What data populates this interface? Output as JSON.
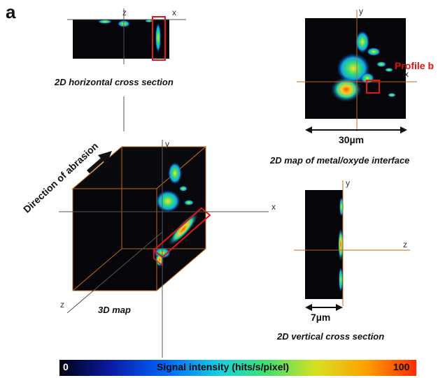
{
  "panel_label": "a",
  "captions": {
    "horizontal": "2D horizontal cross section",
    "map_interface": "2D map of metal/oxyde interface",
    "map3d": "3D map",
    "vertical": "2D vertical cross section"
  },
  "scale_bars": {
    "top_right": "30µm",
    "vertical": "7µm"
  },
  "profile_label": "Profile b",
  "direction_label": "Direction of abrasion",
  "axes": {
    "x": "x",
    "y": "y",
    "z": "z"
  },
  "colorbar": {
    "min": "0",
    "title": "Signal intensity (hits/s/pixel)",
    "max": "100",
    "colors": [
      "#000010",
      "#0a1aa0",
      "#0066ff",
      "#18d0e0",
      "#40e070",
      "#d8e020",
      "#ffa000",
      "#ff2a00"
    ]
  },
  "colors": {
    "map_background": "#06060a",
    "axis_line": "#c06a18",
    "highlight_box": "#e01818"
  }
}
